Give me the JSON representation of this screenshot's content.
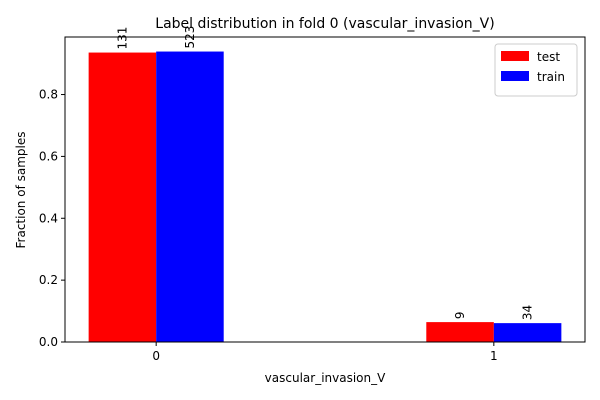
{
  "chart_data": {
    "type": "bar",
    "title": "Label distribution in fold 0 (vascular_invasion_V)",
    "x_label": "vascular_invasion_V",
    "y_label": "Fraction of samples",
    "categories": [
      "0",
      "1"
    ],
    "series": [
      {
        "name": "test",
        "color": "#ff0000",
        "values": [
          0.9357,
          0.0643
        ],
        "labels": [
          131,
          9
        ]
      },
      {
        "name": "train",
        "color": "#0000ff",
        "values": [
          0.939,
          0.061
        ],
        "labels": [
          523,
          34
        ]
      }
    ],
    "ylim": [
      0,
      0.986
    ],
    "yticks": [
      {
        "value": 0,
        "label": "0.0"
      },
      0.2,
      0.4,
      0.6,
      0.8
    ],
    "legend": "upper right"
  }
}
